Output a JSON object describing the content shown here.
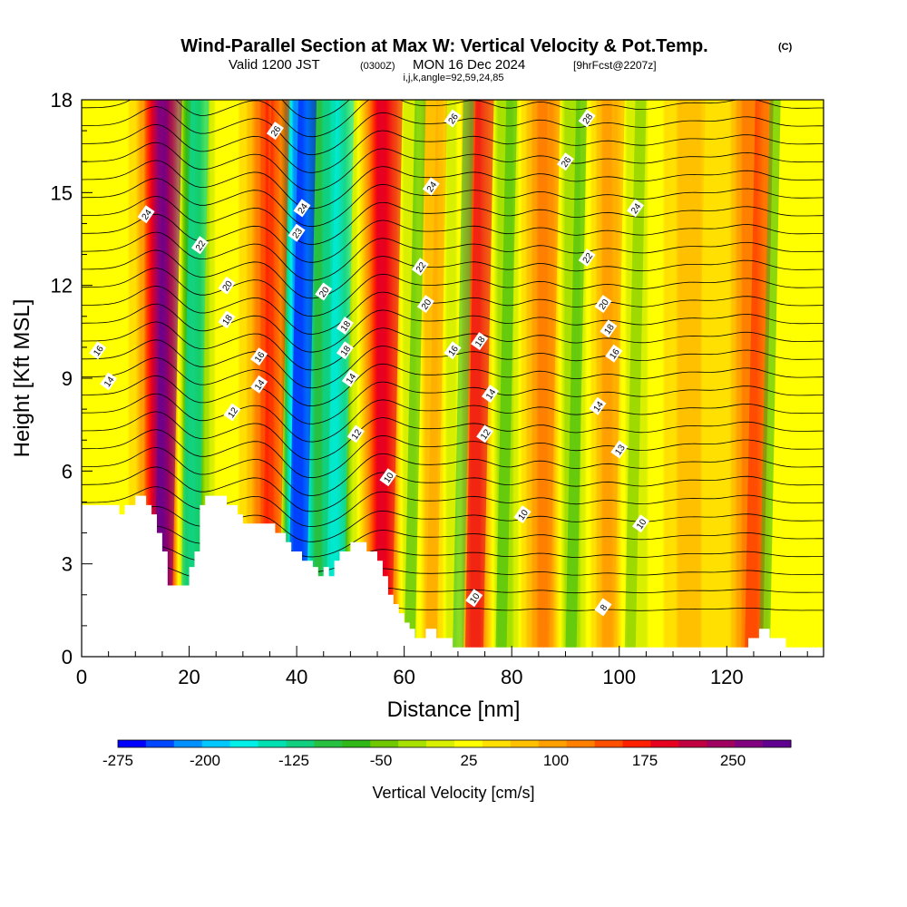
{
  "chart_data": {
    "type": "heatmap",
    "title": "Wind-Parallel Section at Max W: Vertical Velocity & Pot.Temp.",
    "copyright": "(C)",
    "subtitle_valid": "Valid 1200 JST",
    "subtitle_utc": "(0300Z)",
    "subtitle_date": "MON 16 Dec 2024",
    "subtitle_fcst": "[9hrFcst@2207z]",
    "subtitle_indices": "i,j,k,angle=92,59,24,85",
    "xlabel": "Distance [nm]",
    "ylabel": "Height [Kft MSL]",
    "xlim": [
      0,
      138
    ],
    "ylim": [
      0,
      18
    ],
    "x_ticks": [
      "0",
      "20",
      "40",
      "60",
      "80",
      "100",
      "120"
    ],
    "y_ticks": [
      "0",
      "3",
      "6",
      "9",
      "12",
      "15",
      "18"
    ],
    "colorbar_label": "Vertical Velocity [cm/s]",
    "colorbar_ticks": [
      "-275",
      "-200",
      "-125",
      "-50",
      "25",
      "100",
      "175",
      "250"
    ],
    "colorbar_colors": [
      "#0000ff",
      "#0048ff",
      "#0090ff",
      "#00c8ff",
      "#00f0e8",
      "#00e0b0",
      "#10d080",
      "#28c040",
      "#30b818",
      "#70c800",
      "#a8e000",
      "#d8f000",
      "#ffff00",
      "#ffe000",
      "#ffc000",
      "#ffa000",
      "#ff8000",
      "#ff5000",
      "#ff2000",
      "#e80020",
      "#c00040",
      "#a00060",
      "#800080",
      "#600090"
    ],
    "updraft_bands_nm": [
      {
        "x": 15,
        "w": 250
      },
      {
        "x": 35,
        "w": 150
      },
      {
        "x": 56,
        "w": 175
      },
      {
        "x": 65,
        "w": 75
      },
      {
        "x": 73,
        "w": 175
      },
      {
        "x": 86,
        "w": 100
      },
      {
        "x": 98,
        "w": 75
      },
      {
        "x": 113,
        "w": 50
      },
      {
        "x": 125,
        "w": 150
      }
    ],
    "downdraft_bands_nm": [
      {
        "x": 20,
        "w": -150
      },
      {
        "x": 40,
        "w": -275
      },
      {
        "x": 47,
        "w": -175
      },
      {
        "x": 61,
        "w": -75
      },
      {
        "x": 70,
        "w": -100
      },
      {
        "x": 78,
        "w": -75
      },
      {
        "x": 91,
        "w": -75
      },
      {
        "x": 102,
        "w": -50
      },
      {
        "x": 127,
        "w": -75
      }
    ],
    "terrain_kft": [
      [
        0,
        4.9
      ],
      [
        7,
        4.9
      ],
      [
        7,
        4.6
      ],
      [
        8,
        4.6
      ],
      [
        8,
        4.9
      ],
      [
        10,
        4.9
      ],
      [
        10,
        5.2
      ],
      [
        12,
        5.2
      ],
      [
        12,
        4.9
      ],
      [
        13,
        4.9
      ],
      [
        13,
        4.6
      ],
      [
        14,
        4.6
      ],
      [
        14,
        4.0
      ],
      [
        15,
        4.0
      ],
      [
        15,
        3.4
      ],
      [
        16,
        3.4
      ],
      [
        16,
        2.3
      ],
      [
        20,
        2.3
      ],
      [
        20,
        2.9
      ],
      [
        21,
        2.9
      ],
      [
        21,
        3.4
      ],
      [
        22,
        3.4
      ],
      [
        22,
        4.9
      ],
      [
        23,
        4.9
      ],
      [
        23,
        5.2
      ],
      [
        27,
        5.2
      ],
      [
        27,
        4.9
      ],
      [
        29,
        4.9
      ],
      [
        29,
        4.6
      ],
      [
        30,
        4.6
      ],
      [
        30,
        4.3
      ],
      [
        31,
        4.3
      ],
      [
        31,
        4.3
      ],
      [
        36,
        4.3
      ],
      [
        36,
        4.0
      ],
      [
        38,
        4.0
      ],
      [
        38,
        3.7
      ],
      [
        39,
        3.7
      ],
      [
        39,
        3.4
      ],
      [
        41,
        3.4
      ],
      [
        41,
        3.1
      ],
      [
        43,
        3.1
      ],
      [
        43,
        2.9
      ],
      [
        44,
        2.9
      ],
      [
        44,
        2.6
      ],
      [
        45,
        2.6
      ],
      [
        45,
        2.9
      ],
      [
        46,
        2.9
      ],
      [
        46,
        2.6
      ],
      [
        47,
        2.6
      ],
      [
        47,
        3.1
      ],
      [
        48,
        3.1
      ],
      [
        48,
        3.4
      ],
      [
        50,
        3.4
      ],
      [
        50,
        3.7
      ],
      [
        53,
        3.7
      ],
      [
        53,
        3.4
      ],
      [
        55,
        3.4
      ],
      [
        55,
        3.1
      ],
      [
        56,
        3.1
      ],
      [
        56,
        2.6
      ],
      [
        57,
        2.6
      ],
      [
        57,
        2.0
      ],
      [
        58,
        2.0
      ],
      [
        58,
        1.7
      ],
      [
        59,
        1.7
      ],
      [
        59,
        1.4
      ],
      [
        60,
        1.4
      ],
      [
        60,
        1.1
      ],
      [
        61,
        1.1
      ],
      [
        61,
        0.9
      ],
      [
        62,
        0.9
      ],
      [
        62,
        0.6
      ],
      [
        64,
        0.6
      ],
      [
        64,
        0.9
      ],
      [
        66,
        0.9
      ],
      [
        66,
        0.6
      ],
      [
        69,
        0.6
      ],
      [
        69,
        0.3
      ],
      [
        72,
        0.3
      ],
      [
        72,
        0.3
      ],
      [
        124,
        0.3
      ],
      [
        124,
        0.6
      ],
      [
        126,
        0.6
      ],
      [
        126,
        0.9
      ],
      [
        128,
        0.9
      ],
      [
        128,
        0.6
      ],
      [
        131,
        0.6
      ],
      [
        131,
        0.3
      ],
      [
        138,
        0.3
      ]
    ],
    "theta_labels": [
      {
        "text": "26",
        "x": 36,
        "y": 17.0
      },
      {
        "text": "26",
        "x": 69,
        "y": 17.4
      },
      {
        "text": "28",
        "x": 94,
        "y": 17.4
      },
      {
        "text": "26",
        "x": 90,
        "y": 16.0
      },
      {
        "text": "24",
        "x": 12,
        "y": 14.3
      },
      {
        "text": "24",
        "x": 41,
        "y": 14.5
      },
      {
        "text": "24",
        "x": 65,
        "y": 15.2
      },
      {
        "text": "24",
        "x": 103,
        "y": 14.5
      },
      {
        "text": "23",
        "x": 40,
        "y": 13.7
      },
      {
        "text": "22",
        "x": 22,
        "y": 13.3
      },
      {
        "text": "22",
        "x": 63,
        "y": 12.6
      },
      {
        "text": "22",
        "x": 94,
        "y": 12.9
      },
      {
        "text": "20",
        "x": 27,
        "y": 12.0
      },
      {
        "text": "20",
        "x": 45,
        "y": 11.8
      },
      {
        "text": "20",
        "x": 64,
        "y": 11.4
      },
      {
        "text": "20",
        "x": 97,
        "y": 11.4
      },
      {
        "text": "18",
        "x": 27,
        "y": 10.9
      },
      {
        "text": "18",
        "x": 49,
        "y": 10.7
      },
      {
        "text": "18",
        "x": 74,
        "y": 10.2
      },
      {
        "text": "18",
        "x": 98,
        "y": 10.6
      },
      {
        "text": "16",
        "x": 3,
        "y": 9.9
      },
      {
        "text": "18",
        "x": 49,
        "y": 9.9
      },
      {
        "text": "16",
        "x": 69,
        "y": 9.9
      },
      {
        "text": "16",
        "x": 99,
        "y": 9.8
      },
      {
        "text": "16",
        "x": 33,
        "y": 9.7
      },
      {
        "text": "14",
        "x": 5,
        "y": 8.9
      },
      {
        "text": "14",
        "x": 33,
        "y": 8.8
      },
      {
        "text": "14",
        "x": 50,
        "y": 9.0
      },
      {
        "text": "14",
        "x": 76,
        "y": 8.5
      },
      {
        "text": "14",
        "x": 96,
        "y": 8.1
      },
      {
        "text": "12",
        "x": 28,
        "y": 7.9
      },
      {
        "text": "12",
        "x": 51,
        "y": 7.2
      },
      {
        "text": "12",
        "x": 75,
        "y": 7.2
      },
      {
        "text": "13",
        "x": 100,
        "y": 6.7
      },
      {
        "text": "10",
        "x": 57,
        "y": 5.8
      },
      {
        "text": "10",
        "x": 82,
        "y": 4.6
      },
      {
        "text": "10",
        "x": 104,
        "y": 4.3
      },
      {
        "text": "10",
        "x": 73,
        "y": 1.9
      },
      {
        "text": "8",
        "x": 97,
        "y": 1.6
      }
    ]
  }
}
